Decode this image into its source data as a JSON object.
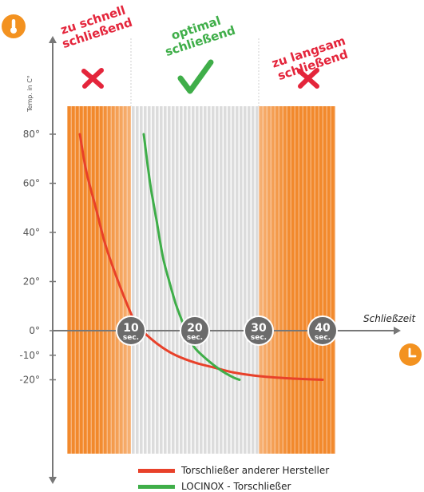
{
  "chart_data": {
    "type": "line",
    "title": "",
    "xlabel": "Schließzeit",
    "ylabel": "Temp. in C°",
    "xlim": [
      0,
      42
    ],
    "ylim": [
      -25,
      85
    ],
    "x_ticks": [
      {
        "value": 10,
        "num": "10",
        "unit": "sec."
      },
      {
        "value": 20,
        "num": "20",
        "unit": "sec."
      },
      {
        "value": 30,
        "num": "30",
        "unit": "sec."
      },
      {
        "value": 40,
        "num": "40",
        "unit": "sec."
      }
    ],
    "y_ticks": [
      {
        "value": 80,
        "label": "80°"
      },
      {
        "value": 60,
        "label": "60°"
      },
      {
        "value": 40,
        "label": "40°"
      },
      {
        "value": 20,
        "label": "20°"
      },
      {
        "value": 0,
        "label": "0°"
      },
      {
        "value": -10,
        "label": "-10°"
      },
      {
        "value": -20,
        "label": "-20°"
      }
    ],
    "zones": [
      {
        "name": "too_fast",
        "from": 0,
        "to": 10,
        "label_lines": [
          "zu schnell",
          "schließend"
        ],
        "label_color": "#e4253b",
        "mark": "cross"
      },
      {
        "name": "optimal",
        "from": 10,
        "to": 30,
        "label_lines": [
          "optimal",
          "schließend"
        ],
        "label_color": "#3fae49",
        "mark": "check"
      },
      {
        "name": "too_slow",
        "from": 30,
        "to": 42,
        "label_lines": [
          "zu langsam",
          "schließend"
        ],
        "label_color": "#e4253b",
        "mark": "cross"
      }
    ],
    "series": [
      {
        "name": "Torschließer anderer Hersteller",
        "color": "#e8412a",
        "points": [
          [
            2,
            80
          ],
          [
            3,
            65
          ],
          [
            4.5,
            50
          ],
          [
            6,
            35
          ],
          [
            8,
            20
          ],
          [
            10,
            7
          ],
          [
            11,
            2
          ],
          [
            13,
            -3
          ],
          [
            15,
            -7
          ],
          [
            17,
            -10
          ],
          [
            20,
            -13
          ],
          [
            23,
            -15
          ],
          [
            26,
            -17
          ],
          [
            30,
            -18.5
          ],
          [
            34,
            -19.3
          ],
          [
            38,
            -19.8
          ],
          [
            40,
            -20
          ]
        ]
      },
      {
        "name": "LOCINOX - Torschließer",
        "color": "#3fae49",
        "points": [
          [
            12,
            80
          ],
          [
            13,
            60
          ],
          [
            14,
            45
          ],
          [
            15,
            30
          ],
          [
            16,
            20
          ],
          [
            17,
            11
          ],
          [
            18,
            4
          ],
          [
            19,
            -2
          ],
          [
            20,
            -7
          ],
          [
            22,
            -12
          ],
          [
            24,
            -16
          ],
          [
            26,
            -19
          ],
          [
            27,
            -20
          ]
        ]
      }
    ],
    "grid": false,
    "legend_position": "bottom",
    "colors": {
      "orange": "#f2892c",
      "orange_light": "#f7b47a",
      "gray": "#d9d9d9",
      "axis": "#777777",
      "badge": "#6b6b6b",
      "icon": "#f39220"
    },
    "icons": {
      "y_axis": "thermometer-icon",
      "x_axis": "clock-icon"
    }
  }
}
